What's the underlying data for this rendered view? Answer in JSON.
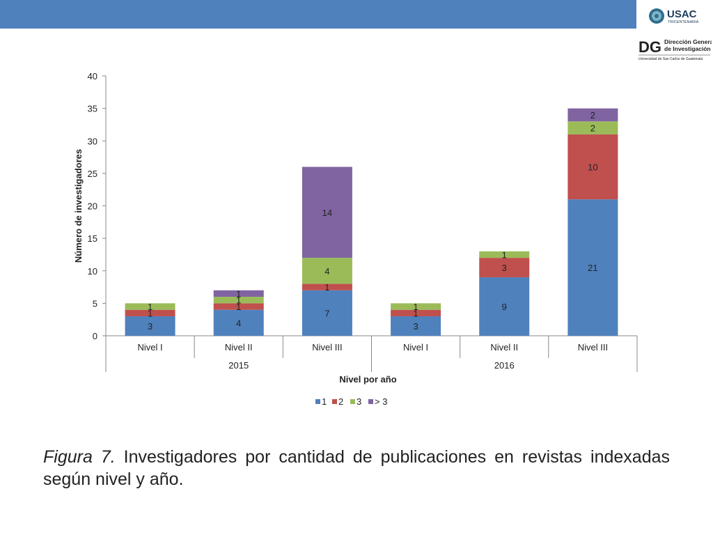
{
  "header": {
    "usac_logo": {
      "name": "USAC",
      "subtitle": "TRICENTENARIA"
    },
    "dgi_logo": {
      "mark": "DG",
      "line1": "Dirección General",
      "line2": "de Investigación",
      "line3": "Universidad de San Carlos de Guatemala"
    }
  },
  "caption": {
    "label": "Figura 7.",
    "text": " Investigadores por cantidad de publicaciones en revistas indexadas según nivel y año."
  },
  "colors": {
    "bar_top": "#4f81bd",
    "s1": "#4f81bd",
    "s2": "#c0504d",
    "s3": "#9bbb59",
    "s4": "#8064a2"
  },
  "chart_data": {
    "type": "bar",
    "stacked": true,
    "categories": [
      "Nivel I",
      "Nivel II",
      "Nivel III",
      "Nivel I",
      "Nivel II",
      "Nivel III"
    ],
    "groups": [
      {
        "label": "2015",
        "span": 3
      },
      {
        "label": "2016",
        "span": 3
      }
    ],
    "series": [
      {
        "name": "1",
        "values": [
          3,
          4,
          7,
          3,
          9,
          21
        ]
      },
      {
        "name": "2",
        "values": [
          1,
          1,
          1,
          1,
          3,
          10
        ]
      },
      {
        "name": "3",
        "values": [
          1,
          1,
          4,
          1,
          1,
          2
        ]
      },
      {
        "name": "> 3",
        "values": [
          0,
          1,
          14,
          0,
          0,
          2
        ]
      }
    ],
    "title": "",
    "xlabel": "Nivel por año",
    "ylabel": "Número de investigadores",
    "ylim": [
      0,
      40
    ],
    "yticks": [
      0,
      5,
      10,
      15,
      20,
      25,
      30,
      35,
      40
    ],
    "legend": "bottom",
    "grid": false
  }
}
